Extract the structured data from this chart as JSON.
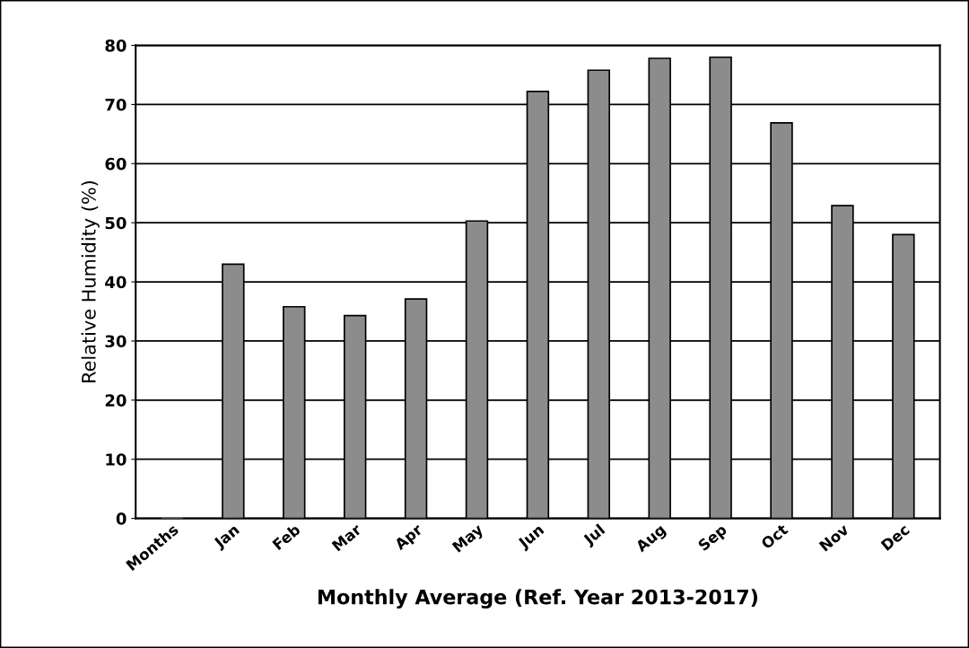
{
  "chart_data": {
    "type": "bar",
    "xlabel": "Monthly Average (Ref. Year 2013-2017)",
    "ylabel": "Relative Humidity (%)",
    "categories": [
      "Months",
      "Jan",
      "Feb",
      "Mar",
      "Apr",
      "May",
      "Jun",
      "Jul",
      "Aug",
      "Sep",
      "Oct",
      "Nov",
      "Dec"
    ],
    "values": [
      0,
      43,
      35.8,
      34.3,
      37.1,
      50.3,
      72.2,
      75.8,
      77.8,
      78,
      66.9,
      52.9,
      48
    ],
    "color": "#8c8c8c",
    "ylim": [
      0,
      80
    ],
    "yticks": [
      0,
      10,
      20,
      30,
      40,
      50,
      60,
      70,
      80
    ],
    "grid": "y"
  }
}
